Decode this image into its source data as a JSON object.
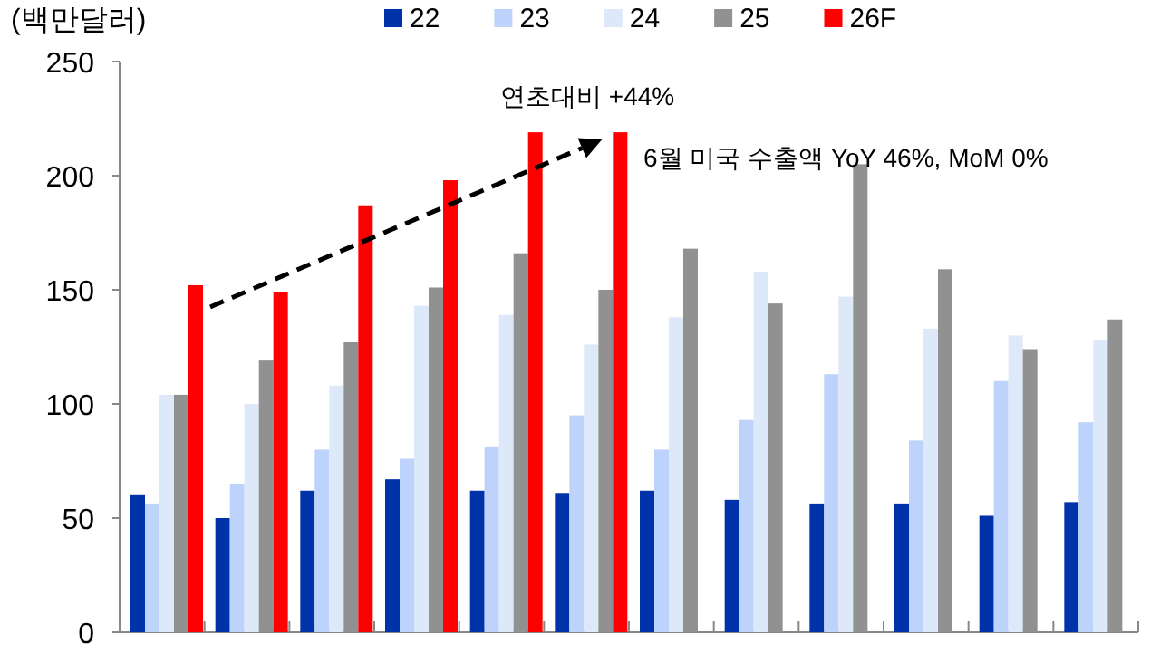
{
  "chart_data": {
    "type": "bar",
    "ylabel": "(백만달러)",
    "categories": [
      null,
      null,
      null,
      null,
      null,
      null,
      null,
      null,
      null,
      null,
      null,
      null
    ],
    "series": [
      {
        "name": "22",
        "color": "#0033aa",
        "values": [
          60,
          50,
          62,
          67,
          62,
          61,
          62,
          58,
          56,
          56,
          51,
          57
        ]
      },
      {
        "name": "23",
        "color": "#bdd3fb",
        "values": [
          56,
          65,
          80,
          76,
          81,
          95,
          80,
          93,
          113,
          84,
          110,
          92
        ]
      },
      {
        "name": "24",
        "color": "#dde8f8",
        "values": [
          104,
          100,
          108,
          143,
          139,
          126,
          138,
          158,
          147,
          133,
          130,
          128
        ]
      },
      {
        "name": "25",
        "color": "#919191",
        "values": [
          104,
          119,
          127,
          151,
          166,
          150,
          168,
          144,
          205,
          159,
          124,
          137
        ]
      },
      {
        "name": "26F",
        "color": "#ff0000",
        "values": [
          152,
          149,
          187,
          198,
          219,
          219,
          null,
          null,
          null,
          null,
          null,
          null
        ]
      }
    ],
    "ylim": [
      0,
      250
    ],
    "yticks": [
      0,
      50,
      100,
      150,
      200,
      250
    ],
    "grid": false,
    "legend": "top",
    "annotations": [
      "연초대비 +44%",
      "6월 미국 수출액 YoY 46%, MoM 0%"
    ]
  }
}
